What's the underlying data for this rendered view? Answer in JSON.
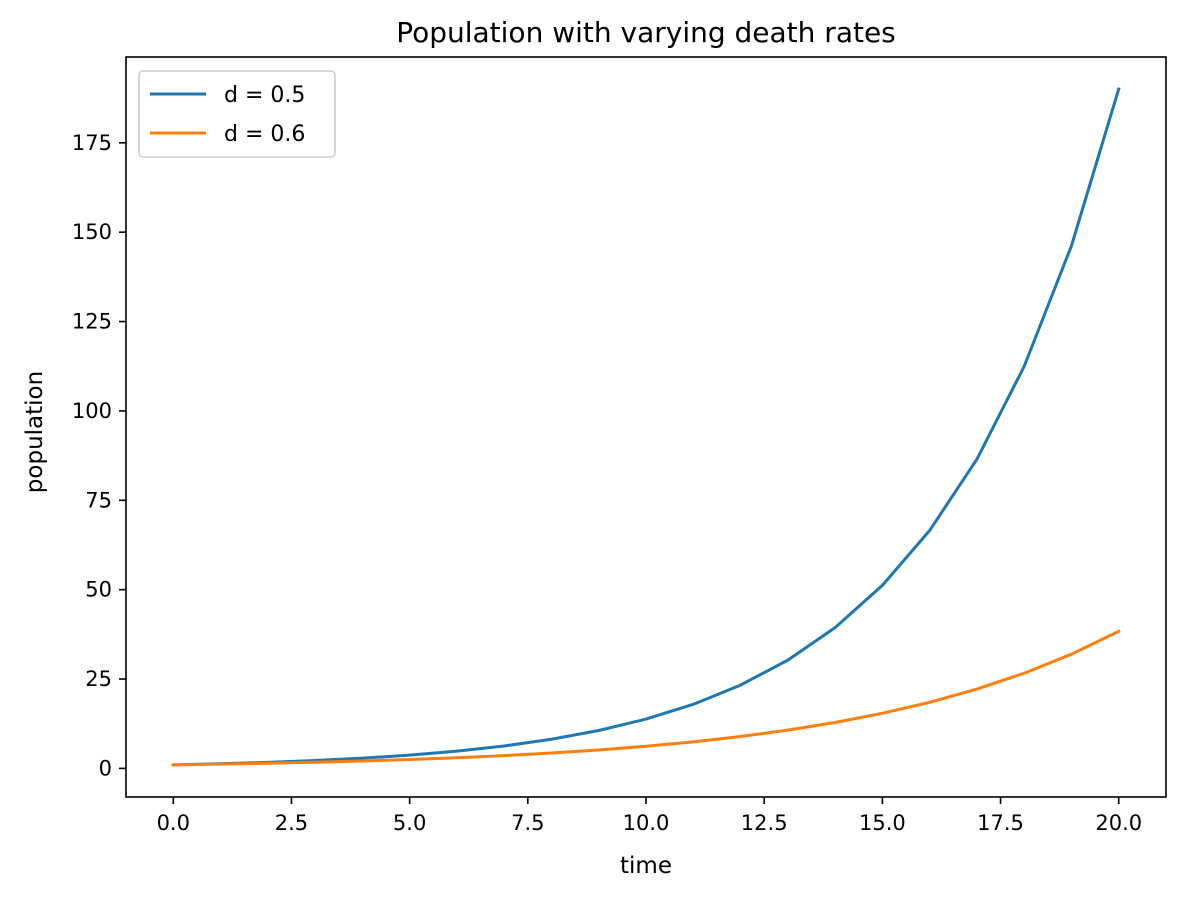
{
  "chart_data": {
    "type": "line",
    "title": "Population with varying death rates",
    "xlabel": "time",
    "ylabel": "population",
    "xlim": [
      -1,
      21
    ],
    "ylim": [
      -8,
      199
    ],
    "xticks": [
      0,
      2.5,
      5,
      7.5,
      10,
      12.5,
      15,
      17.5,
      20
    ],
    "xtick_labels": [
      "0.0",
      "2.5",
      "5.0",
      "7.5",
      "10.0",
      "12.5",
      "15.0",
      "17.5",
      "20.0"
    ],
    "yticks": [
      0,
      25,
      50,
      75,
      100,
      125,
      150,
      175
    ],
    "ytick_labels": [
      "0",
      "25",
      "50",
      "75",
      "100",
      "125",
      "150",
      "175"
    ],
    "grid": false,
    "legend_position": "top-left",
    "x": [
      0,
      1,
      2,
      3,
      4,
      5,
      6,
      7,
      8,
      9,
      10,
      11,
      12,
      13,
      14,
      15,
      16,
      17,
      18,
      19,
      20
    ],
    "series": [
      {
        "name": "d = 0.5",
        "color": "#1f77b4",
        "values": [
          1,
          1.3,
          1.69,
          2.2,
          2.86,
          3.71,
          4.83,
          6.27,
          8.16,
          10.6,
          13.79,
          17.92,
          23.3,
          30.29,
          39.37,
          51.19,
          66.54,
          86.5,
          112.46,
          146.19,
          190.05
        ]
      },
      {
        "name": "d = 0.6",
        "color": "#ff7f0e",
        "values": [
          1,
          1.2,
          1.44,
          1.73,
          2.07,
          2.49,
          2.99,
          3.58,
          4.3,
          5.16,
          6.19,
          7.43,
          8.92,
          10.7,
          12.84,
          15.41,
          18.49,
          22.19,
          26.62,
          31.95,
          38.34
        ]
      }
    ]
  }
}
